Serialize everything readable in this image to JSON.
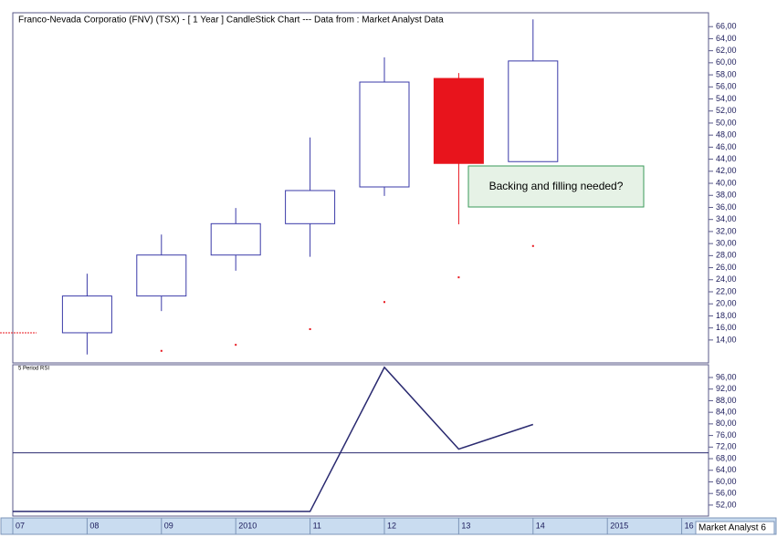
{
  "chart_data": [
    {
      "type": "candlestick",
      "title": "Franco-Nevada Corporatio (FNV) (TSX) -  [ 1 Year ] CandleStick Chart --- Data from : Market Analyst Data",
      "categories": [
        "07",
        "08",
        "09",
        "2010",
        "11",
        "12",
        "13",
        "14",
        "2015",
        "16"
      ],
      "open": [
        null,
        15.2,
        21.3,
        28.1,
        33.3,
        39.4,
        57.4,
        43.6,
        null,
        null
      ],
      "high": [
        null,
        25.0,
        31.5,
        35.9,
        47.6,
        60.9,
        58.3,
        67.2,
        null,
        null
      ],
      "low": [
        null,
        11.6,
        18.8,
        25.5,
        27.8,
        37.9,
        33.2,
        43.6,
        null,
        null
      ],
      "close": [
        null,
        21.3,
        28.1,
        33.3,
        38.8,
        56.8,
        43.3,
        60.3,
        null,
        null
      ],
      "up_color": "#3a3aa8",
      "down_color": "#e8141c",
      "overlay": {
        "color": "#e8141c",
        "values": [
          15.2,
          null,
          12.2,
          13.2,
          15.8,
          20.3,
          24.4,
          29.6,
          null,
          null
        ]
      },
      "annotation": "Backing and filling needed?",
      "ylim": [
        10.2,
        68.3
      ],
      "yticks": [
        {
          "value": 14,
          "label": "14,00"
        },
        {
          "value": 16,
          "label": "16,00"
        },
        {
          "value": 18,
          "label": "18,00"
        },
        {
          "value": 20,
          "label": "20,00"
        },
        {
          "value": 22,
          "label": "22,00"
        },
        {
          "value": 24,
          "label": "24,00"
        },
        {
          "value": 26,
          "label": "26,00"
        },
        {
          "value": 28,
          "label": "28,00"
        },
        {
          "value": 30,
          "label": "30,00"
        },
        {
          "value": 32,
          "label": "32,00"
        },
        {
          "value": 34,
          "label": "34,00"
        },
        {
          "value": 36,
          "label": "36,00"
        },
        {
          "value": 38,
          "label": "38,00"
        },
        {
          "value": 40,
          "label": "40,00"
        },
        {
          "value": 42,
          "label": "42,00"
        },
        {
          "value": 44,
          "label": "44,00"
        },
        {
          "value": 46,
          "label": "46,00"
        },
        {
          "value": 48,
          "label": "48,00"
        },
        {
          "value": 50,
          "label": "50,00"
        },
        {
          "value": 52,
          "label": "52,00"
        },
        {
          "value": 54,
          "label": "54,00"
        },
        {
          "value": 56,
          "label": "56,00"
        },
        {
          "value": 58,
          "label": "58,00"
        },
        {
          "value": 60,
          "label": "60,00"
        },
        {
          "value": 62,
          "label": "62,00"
        },
        {
          "value": 64,
          "label": "64,00"
        },
        {
          "value": 66,
          "label": "66,00"
        }
      ]
    },
    {
      "type": "line",
      "title": "5 Period RSI",
      "categories": [
        "07",
        "08",
        "09",
        "2010",
        "11",
        "12",
        "13",
        "14",
        "2015",
        "16"
      ],
      "values": [
        49.8,
        49.8,
        49.8,
        49.8,
        49.8,
        99.5,
        71.3,
        79.8,
        null,
        null
      ],
      "color": "#2a2a70",
      "reference_line": 70,
      "ylim": [
        48.2,
        100.4
      ],
      "yticks": [
        {
          "value": 52,
          "label": "52,00"
        },
        {
          "value": 56,
          "label": "56,00"
        },
        {
          "value": 60,
          "label": "60,00"
        },
        {
          "value": 64,
          "label": "64,00"
        },
        {
          "value": 68,
          "label": "68,00"
        },
        {
          "value": 72,
          "label": "72,00"
        },
        {
          "value": 76,
          "label": "76,00"
        },
        {
          "value": 80,
          "label": "80,00"
        },
        {
          "value": 84,
          "label": "84,00"
        },
        {
          "value": 88,
          "label": "88,00"
        },
        {
          "value": 92,
          "label": "92,00"
        },
        {
          "value": 96,
          "label": "96,00"
        }
      ]
    }
  ],
  "footer": "Market Analyst 6"
}
